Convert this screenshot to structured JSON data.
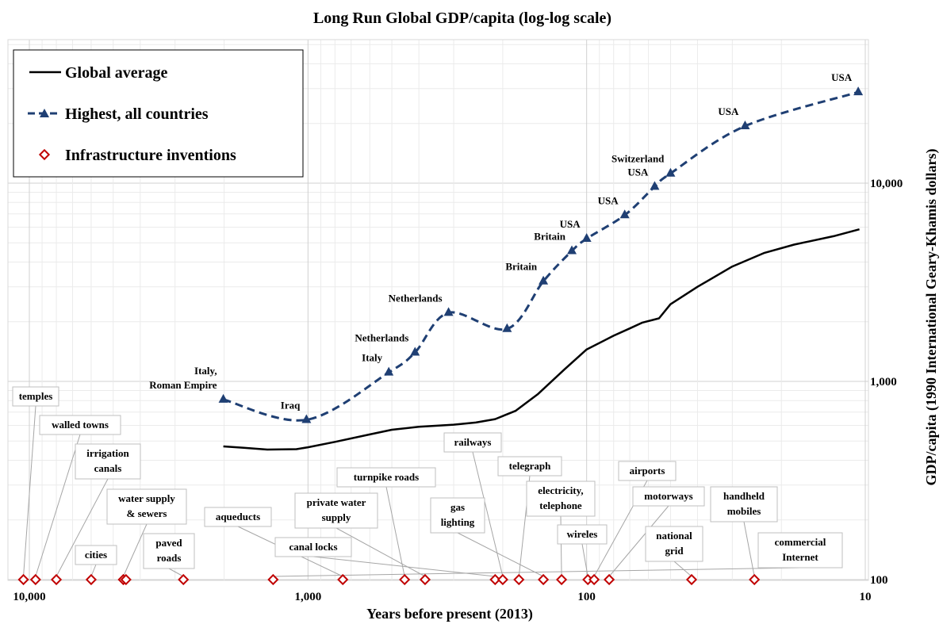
{
  "chart_data": {
    "type": "line",
    "title": "Long Run Global GDP/capita (log-log scale)",
    "xlabel": "Years before present (2013)",
    "ylabel": "GDP/capita (1990 International Geary-Khamis dollars)",
    "x_scale": "log",
    "x_reversed": true,
    "y_scale": "log",
    "xlim": [
      11000,
      10
    ],
    "ylim": [
      100,
      40000
    ],
    "x_ticks": [
      {
        "value": 10000,
        "label": "10,000"
      },
      {
        "value": 1000,
        "label": "1,000"
      },
      {
        "value": 100,
        "label": "100"
      },
      {
        "value": 10,
        "label": "10"
      }
    ],
    "y_ticks": [
      {
        "value": 100,
        "label": "100"
      },
      {
        "value": 1000,
        "label": "1,000"
      },
      {
        "value": 10000,
        "label": "10,000"
      }
    ],
    "grid": true,
    "legend_position": "top-left",
    "colors": {
      "global": "#000000",
      "highest": "#1F3F73",
      "infra": "#C00000",
      "grid": "#D9D9D9"
    },
    "series": [
      {
        "name": "Global average",
        "style": "solid",
        "points": [
          {
            "x": 2013,
            "y": 470
          },
          {
            "x": 1700,
            "y": 462
          },
          {
            "x": 1400,
            "y": 453
          },
          {
            "x": 1100,
            "y": 455
          },
          {
            "x": 1000,
            "y": 465
          },
          {
            "x": 800,
            "y": 495
          },
          {
            "x": 600,
            "y": 540
          },
          {
            "x": 500,
            "y": 570
          },
          {
            "x": 400,
            "y": 590
          },
          {
            "x": 300,
            "y": 605
          },
          {
            "x": 250,
            "y": 620
          },
          {
            "x": 213,
            "y": 645
          },
          {
            "x": 180,
            "y": 710
          },
          {
            "x": 150,
            "y": 860
          },
          {
            "x": 120,
            "y": 1150
          },
          {
            "x": 100,
            "y": 1450
          },
          {
            "x": 80,
            "y": 1700
          },
          {
            "x": 70,
            "y": 1850
          },
          {
            "x": 63,
            "y": 1980
          },
          {
            "x": 55,
            "y": 2080
          },
          {
            "x": 50,
            "y": 2450
          },
          {
            "x": 40,
            "y": 3000
          },
          {
            "x": 30,
            "y": 3800
          },
          {
            "x": 23,
            "y": 4450
          },
          {
            "x": 18,
            "y": 4900
          },
          {
            "x": 13,
            "y": 5400
          },
          {
            "x": 10.5,
            "y": 5850
          }
        ]
      },
      {
        "name": "Highest, all countries",
        "style": "dashed-triangle",
        "points": [
          {
            "x": 2013,
            "y": 810,
            "label": "Italy,\nRoman  Empire"
          },
          {
            "x": 1013,
            "y": 640,
            "label": "Iraq"
          },
          {
            "x": 513,
            "y": 1110,
            "label": "Italy"
          },
          {
            "x": 413,
            "y": 1400,
            "label": "Netherlands"
          },
          {
            "x": 313,
            "y": 2220,
            "label": "Netherlands"
          },
          {
            "x": 193,
            "y": 1840,
            "label": ""
          },
          {
            "x": 143,
            "y": 3200,
            "label": "Britain"
          },
          {
            "x": 113,
            "y": 4550,
            "label": "Britain"
          },
          {
            "x": 100,
            "y": 5250,
            "label": "USA"
          },
          {
            "x": 73,
            "y": 6900,
            "label": "USA"
          },
          {
            "x": 57,
            "y": 9600,
            "label": "USA"
          },
          {
            "x": 50,
            "y": 11200,
            "label": "Switzerland"
          },
          {
            "x": 27,
            "y": 19400,
            "label": "USA"
          },
          {
            "x": 10.6,
            "y": 28800,
            "label": "USA"
          }
        ]
      }
    ],
    "infrastructure_inventions": [
      {
        "x": 10500,
        "label": "temples"
      },
      {
        "x": 9500,
        "label": "walled towns"
      },
      {
        "x": 8000,
        "label": "irrigation\ncanals"
      },
      {
        "x": 6000,
        "label": "cities"
      },
      {
        "x": 4600,
        "label": "water supply\n& sewers"
      },
      {
        "x": 4500,
        "label": ""
      },
      {
        "x": 2800,
        "label": "paved\nroads"
      },
      {
        "x": 750,
        "label": "aqueducts"
      },
      {
        "x": 450,
        "label": "turnpike roads"
      },
      {
        "x": 380,
        "label": "private water\nsupply"
      },
      {
        "x": 213,
        "label": "canal locks"
      },
      {
        "x": 200,
        "label": "railways"
      },
      {
        "x": 175,
        "label": "telegraph"
      },
      {
        "x": 143,
        "label": "gas\nlighting"
      },
      {
        "x": 123,
        "label": "electricity,\ntelephone"
      },
      {
        "x": 99,
        "label": "wireles"
      },
      {
        "x": 94,
        "label": "airports"
      },
      {
        "x": 83,
        "label": "motorways"
      },
      {
        "x": 42,
        "label": "national\ngrid"
      },
      {
        "x": 25,
        "label": "handheld\nmobiles"
      },
      {
        "x": 1334,
        "label": "commercial\nInternet"
      }
    ]
  }
}
